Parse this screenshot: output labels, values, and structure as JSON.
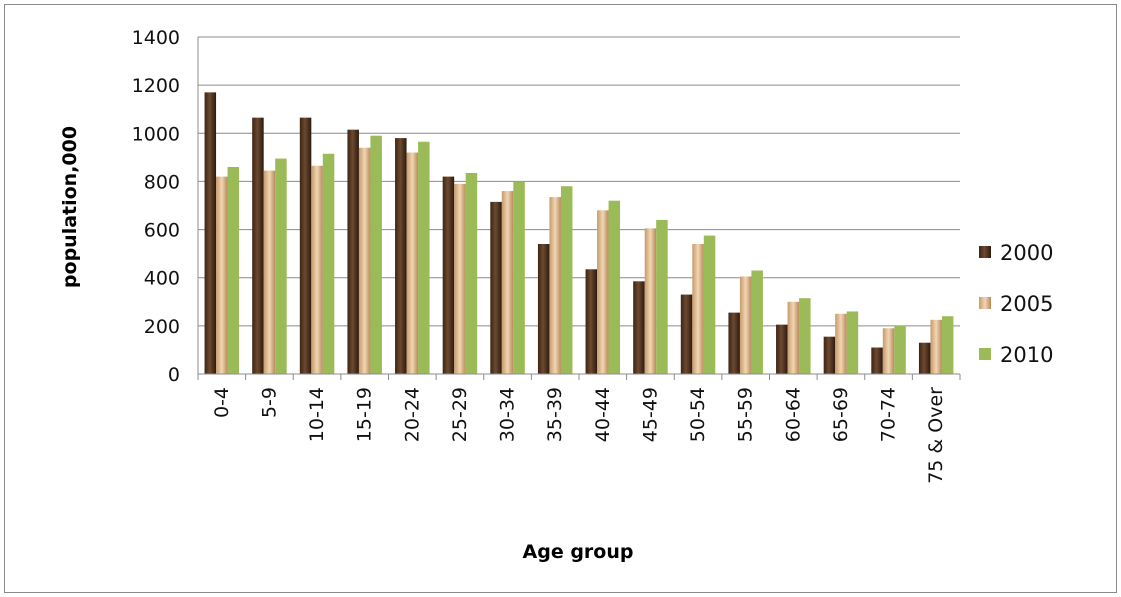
{
  "chart_data": {
    "type": "bar",
    "title": "",
    "xlabel": "Age group",
    "ylabel": "population,000",
    "ylim": [
      0,
      1400
    ],
    "yticks": [
      0,
      200,
      400,
      600,
      800,
      1000,
      1200,
      1400
    ],
    "grid": true,
    "legend_position": "right",
    "categories": [
      "0-4",
      "5-9",
      "10-14",
      "15-19",
      "20-24",
      "25-29",
      "30-34",
      "35-39",
      "40-44",
      "45-49",
      "50-54",
      "55-59",
      "60-64",
      "65-69",
      "70-74",
      "75 & Over"
    ],
    "series": [
      {
        "name": "2000",
        "color": "#5a3a22",
        "values": [
          1170,
          1065,
          1065,
          1015,
          980,
          820,
          715,
          540,
          435,
          385,
          330,
          255,
          205,
          155,
          110,
          130
        ]
      },
      {
        "name": "2005",
        "color": "#d9b88f",
        "values": [
          820,
          845,
          865,
          940,
          920,
          790,
          760,
          735,
          680,
          605,
          540,
          405,
          300,
          250,
          190,
          225
        ]
      },
      {
        "name": "2010",
        "color": "#9bbb59",
        "values": [
          860,
          895,
          915,
          990,
          965,
          835,
          800,
          780,
          720,
          640,
          575,
          430,
          315,
          260,
          200,
          240
        ]
      }
    ]
  }
}
